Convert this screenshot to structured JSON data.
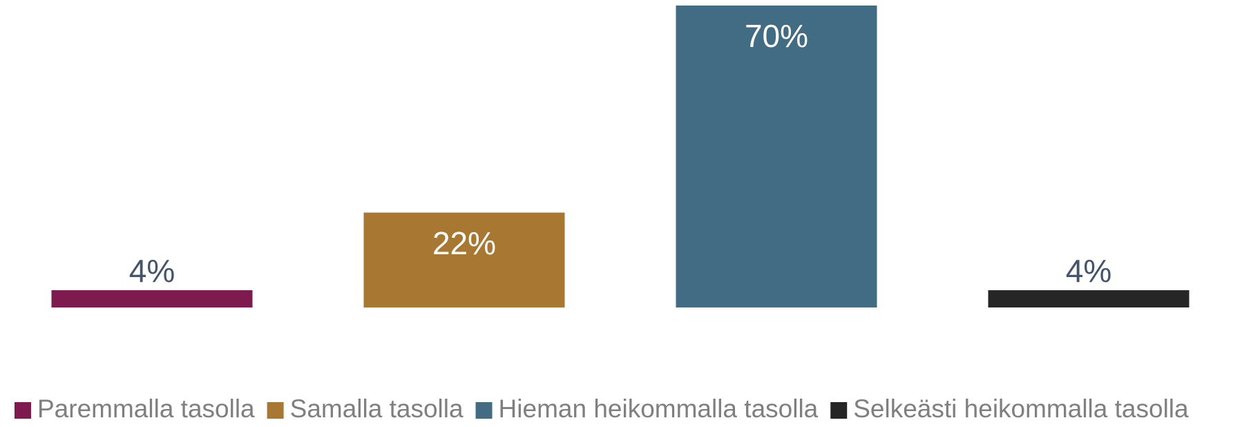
{
  "chart_data": {
    "type": "bar",
    "categories": [
      "Paremmalla tasolla",
      "Samalla tasolla",
      "Hieman heikommalla tasolla",
      "Selkeästi heikommalla tasolla"
    ],
    "values": [
      4,
      22,
      70,
      4
    ],
    "value_labels": [
      "4%",
      "22%",
      "70%",
      "4%"
    ],
    "colors": [
      "#7f1a4e",
      "#a87731",
      "#426b84",
      "#262626"
    ],
    "ylim": [
      0,
      70
    ],
    "legend": "bottom"
  }
}
